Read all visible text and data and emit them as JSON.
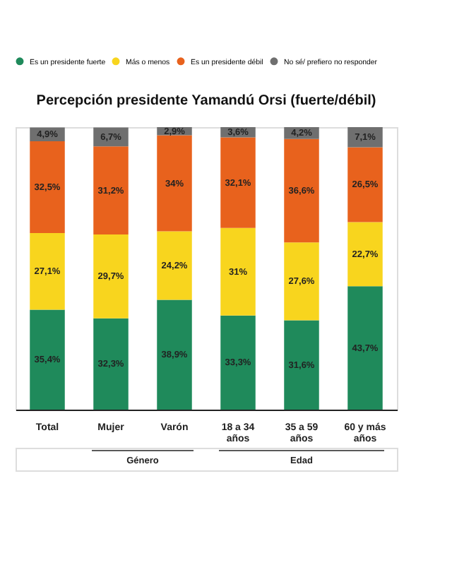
{
  "chart_data": {
    "type": "bar",
    "stacked": true,
    "title": "Percepción presidente Yamandú Orsi (fuerte/débil)",
    "categories": [
      "Total",
      "Mujer",
      "Varón",
      "18 a 34\naños",
      "35 a 59\naños",
      "60 y más\naños"
    ],
    "series": [
      {
        "name": "Es un presidente fuerte",
        "color": "#1f8a5b",
        "values": [
          35.4,
          32.3,
          38.9,
          33.3,
          31.6,
          43.7
        ],
        "value_labels": [
          "35,4%",
          "32,3%",
          "38,9%",
          "33,3%",
          "31,6%",
          "43,7%"
        ]
      },
      {
        "name": "Más o menos",
        "color": "#f8d51e",
        "values": [
          27.1,
          29.7,
          24.2,
          31,
          27.6,
          22.7
        ],
        "value_labels": [
          "27,1%",
          "29,7%",
          "24,2%",
          "31%",
          "27,6%",
          "22,7%"
        ]
      },
      {
        "name": "Es un presidente débil",
        "color": "#e8621d",
        "values": [
          32.5,
          31.2,
          34,
          32.1,
          36.6,
          26.5
        ],
        "value_labels": [
          "32,5%",
          "31,2%",
          "34%",
          "32,1%",
          "36,6%",
          "26,5%"
        ]
      },
      {
        "name": "No sé/ prefiero no responder",
        "color": "#6f6f6f",
        "values": [
          4.9,
          6.7,
          2.9,
          3.6,
          4.2,
          7.1
        ],
        "value_labels": [
          "4,9%",
          "6,7%",
          "2,9%",
          "3,6%",
          "4,2%",
          "7,1%"
        ]
      }
    ],
    "ylim": [
      0,
      100
    ],
    "tick_labels": "x",
    "legend": "top",
    "grid": false,
    "annotations": [
      "Género",
      "Edad"
    ]
  }
}
